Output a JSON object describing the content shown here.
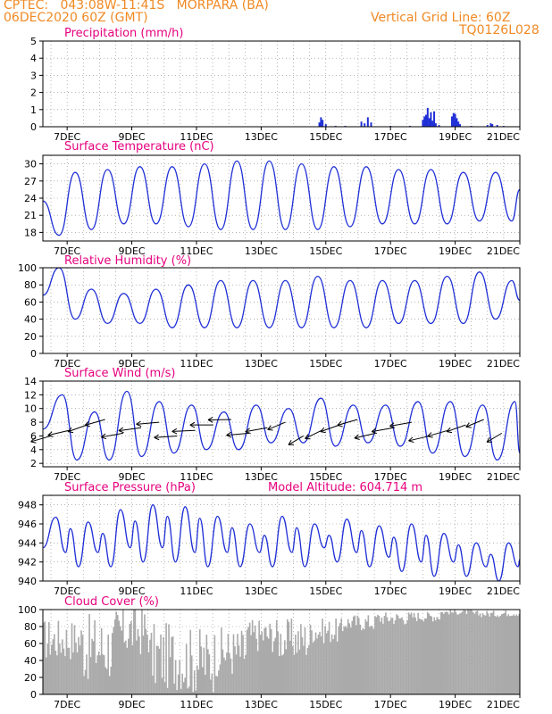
{
  "header": {
    "line1_left": "CPTEC:   043:08W-11:41S   MORPARA (BA)",
    "line2_left": "06DEC2020 60Z (GMT)",
    "line1_right": "Vertical Grid Line: 60Z",
    "line2_right": "TQ0126L028"
  },
  "colors": {
    "header": "#f08a24",
    "title": "#e6007e",
    "series": "#1f2fd6",
    "cloud": "#aaaaaa",
    "grid": "#888888"
  },
  "x_ticks": [
    "7DEC",
    "9DEC",
    "11DEC",
    "13DEC",
    "15DEC",
    "17DEC",
    "19DEC",
    "21DEC"
  ],
  "chart_data": [
    {
      "type": "bar",
      "title": "Precipitation (mm/h)",
      "ylim": [
        0,
        5
      ],
      "yticks": [
        0,
        1,
        2,
        3,
        4,
        5
      ],
      "xlim_days": [
        6.25,
        21
      ],
      "x": [
        14.8,
        14.85,
        14.9,
        15.0,
        15.3,
        15.6,
        16.1,
        16.2,
        16.3,
        16.4,
        17.0,
        17.6,
        18.0,
        18.05,
        18.1,
        18.15,
        18.2,
        18.25,
        18.3,
        18.35,
        18.4,
        18.5,
        18.9,
        18.95,
        19.0,
        19.05,
        19.1,
        19.15,
        19.5,
        20.0,
        20.1,
        20.15,
        20.3,
        20.5
      ],
      "values": [
        0.25,
        0.55,
        0.4,
        0.15,
        0.05,
        0.05,
        0.3,
        0.2,
        0.55,
        0.25,
        0.05,
        0.05,
        0.4,
        0.6,
        0.7,
        1.1,
        0.5,
        0.85,
        0.35,
        0.9,
        0.2,
        0.1,
        0.6,
        0.8,
        0.75,
        0.5,
        0.3,
        0.15,
        0.05,
        0.1,
        0.2,
        0.15,
        0.1,
        0.05
      ]
    },
    {
      "type": "line",
      "title": "Surface Temperature (nC)",
      "ylim": [
        16.5,
        31.5
      ],
      "yticks": [
        18,
        21,
        24,
        27,
        30
      ],
      "xlim_days": [
        6.25,
        21
      ],
      "daily_min": [
        17.5,
        18.5,
        19.5,
        19.5,
        19.0,
        18.5,
        18.5,
        18.5,
        18.5,
        19.0,
        19.5,
        19.5,
        19.5,
        20.0,
        20.0
      ],
      "daily_max": [
        28.5,
        29.0,
        29.5,
        29.5,
        30.0,
        30.5,
        30.5,
        30.0,
        29.5,
        29.5,
        29.0,
        29.0,
        28.5,
        28.5,
        27.5
      ],
      "min_hour": 0.25,
      "max_hour": 0.75,
      "start_value": 23.5,
      "end_value": 25.5
    },
    {
      "type": "line",
      "title": "Relative Humidity (%)",
      "ylim": [
        0,
        100
      ],
      "yticks": [
        0,
        20,
        40,
        60,
        80,
        100
      ],
      "xlim_days": [
        6.25,
        21
      ],
      "daily_max": [
        100,
        75,
        70,
        75,
        80,
        85,
        85,
        85,
        90,
        85,
        85,
        85,
        90,
        95,
        85
      ],
      "daily_min": [
        40,
        35,
        35,
        30,
        30,
        30,
        30,
        30,
        30,
        30,
        35,
        35,
        35,
        40,
        40
      ],
      "max_hour": 0.25,
      "min_hour": 0.75,
      "start_value": 68,
      "end_value": 62
    },
    {
      "type": "line",
      "title": "Surface Wind (m/s)",
      "ylim": [
        1.5,
        14
      ],
      "yticks": [
        2,
        4,
        6,
        8,
        10,
        12,
        14
      ],
      "xlim_days": [
        6.25,
        21
      ],
      "daily_max": [
        12,
        9.5,
        12.5,
        11,
        10.5,
        9.5,
        10.5,
        10,
        11.5,
        10.5,
        10.5,
        11,
        11,
        10.5,
        11
      ],
      "daily_min": [
        2.5,
        2.5,
        3,
        3.5,
        4,
        4,
        5,
        5,
        4.5,
        5,
        4.5,
        3.5,
        3,
        2.5,
        3
      ],
      "max_hour": 0.35,
      "min_hour": 0.8,
      "start_value": 7,
      "end_value": 3.5,
      "vector_angles_deg": [
        210,
        205,
        215,
        210,
        200,
        195,
        190,
        188,
        185,
        180,
        182,
        190,
        200,
        220,
        230,
        225,
        215,
        210,
        205,
        200,
        200,
        205,
        210,
        215,
        220,
        230
      ]
    },
    {
      "type": "line",
      "title": "Surface Pressure (hPa)",
      "annotation": "Model Altitude: 604.714 m",
      "ylim": [
        940,
        949
      ],
      "yticks": [
        940,
        942,
        944,
        946,
        948
      ],
      "xlim_days": [
        6.25,
        21
      ],
      "daily_peak": [
        946.7,
        946.2,
        947.5,
        948,
        947.8,
        946.8,
        946,
        946.8,
        946,
        946.5,
        945.8,
        946,
        945,
        944,
        944
      ],
      "daily_trough": [
        941.5,
        941.5,
        942,
        942,
        941.5,
        941.5,
        941.5,
        941.5,
        942,
        941.5,
        941,
        940.5,
        940.5,
        940,
        940
      ],
      "start_value": 943.5,
      "end_value": 942.3
    },
    {
      "type": "bar",
      "title": "Cloud Cover (%)",
      "ylim": [
        0,
        100
      ],
      "yticks": [
        0,
        20,
        40,
        60,
        80,
        100
      ],
      "xlim_days": [
        6.25,
        21
      ],
      "daily_level": [
        65,
        55,
        75,
        45,
        40,
        50,
        70,
        65,
        75,
        85,
        90,
        92,
        97,
        95,
        96
      ],
      "daily_variation": [
        25,
        40,
        30,
        40,
        40,
        30,
        20,
        25,
        15,
        10,
        8,
        6,
        3,
        4,
        4
      ]
    }
  ]
}
